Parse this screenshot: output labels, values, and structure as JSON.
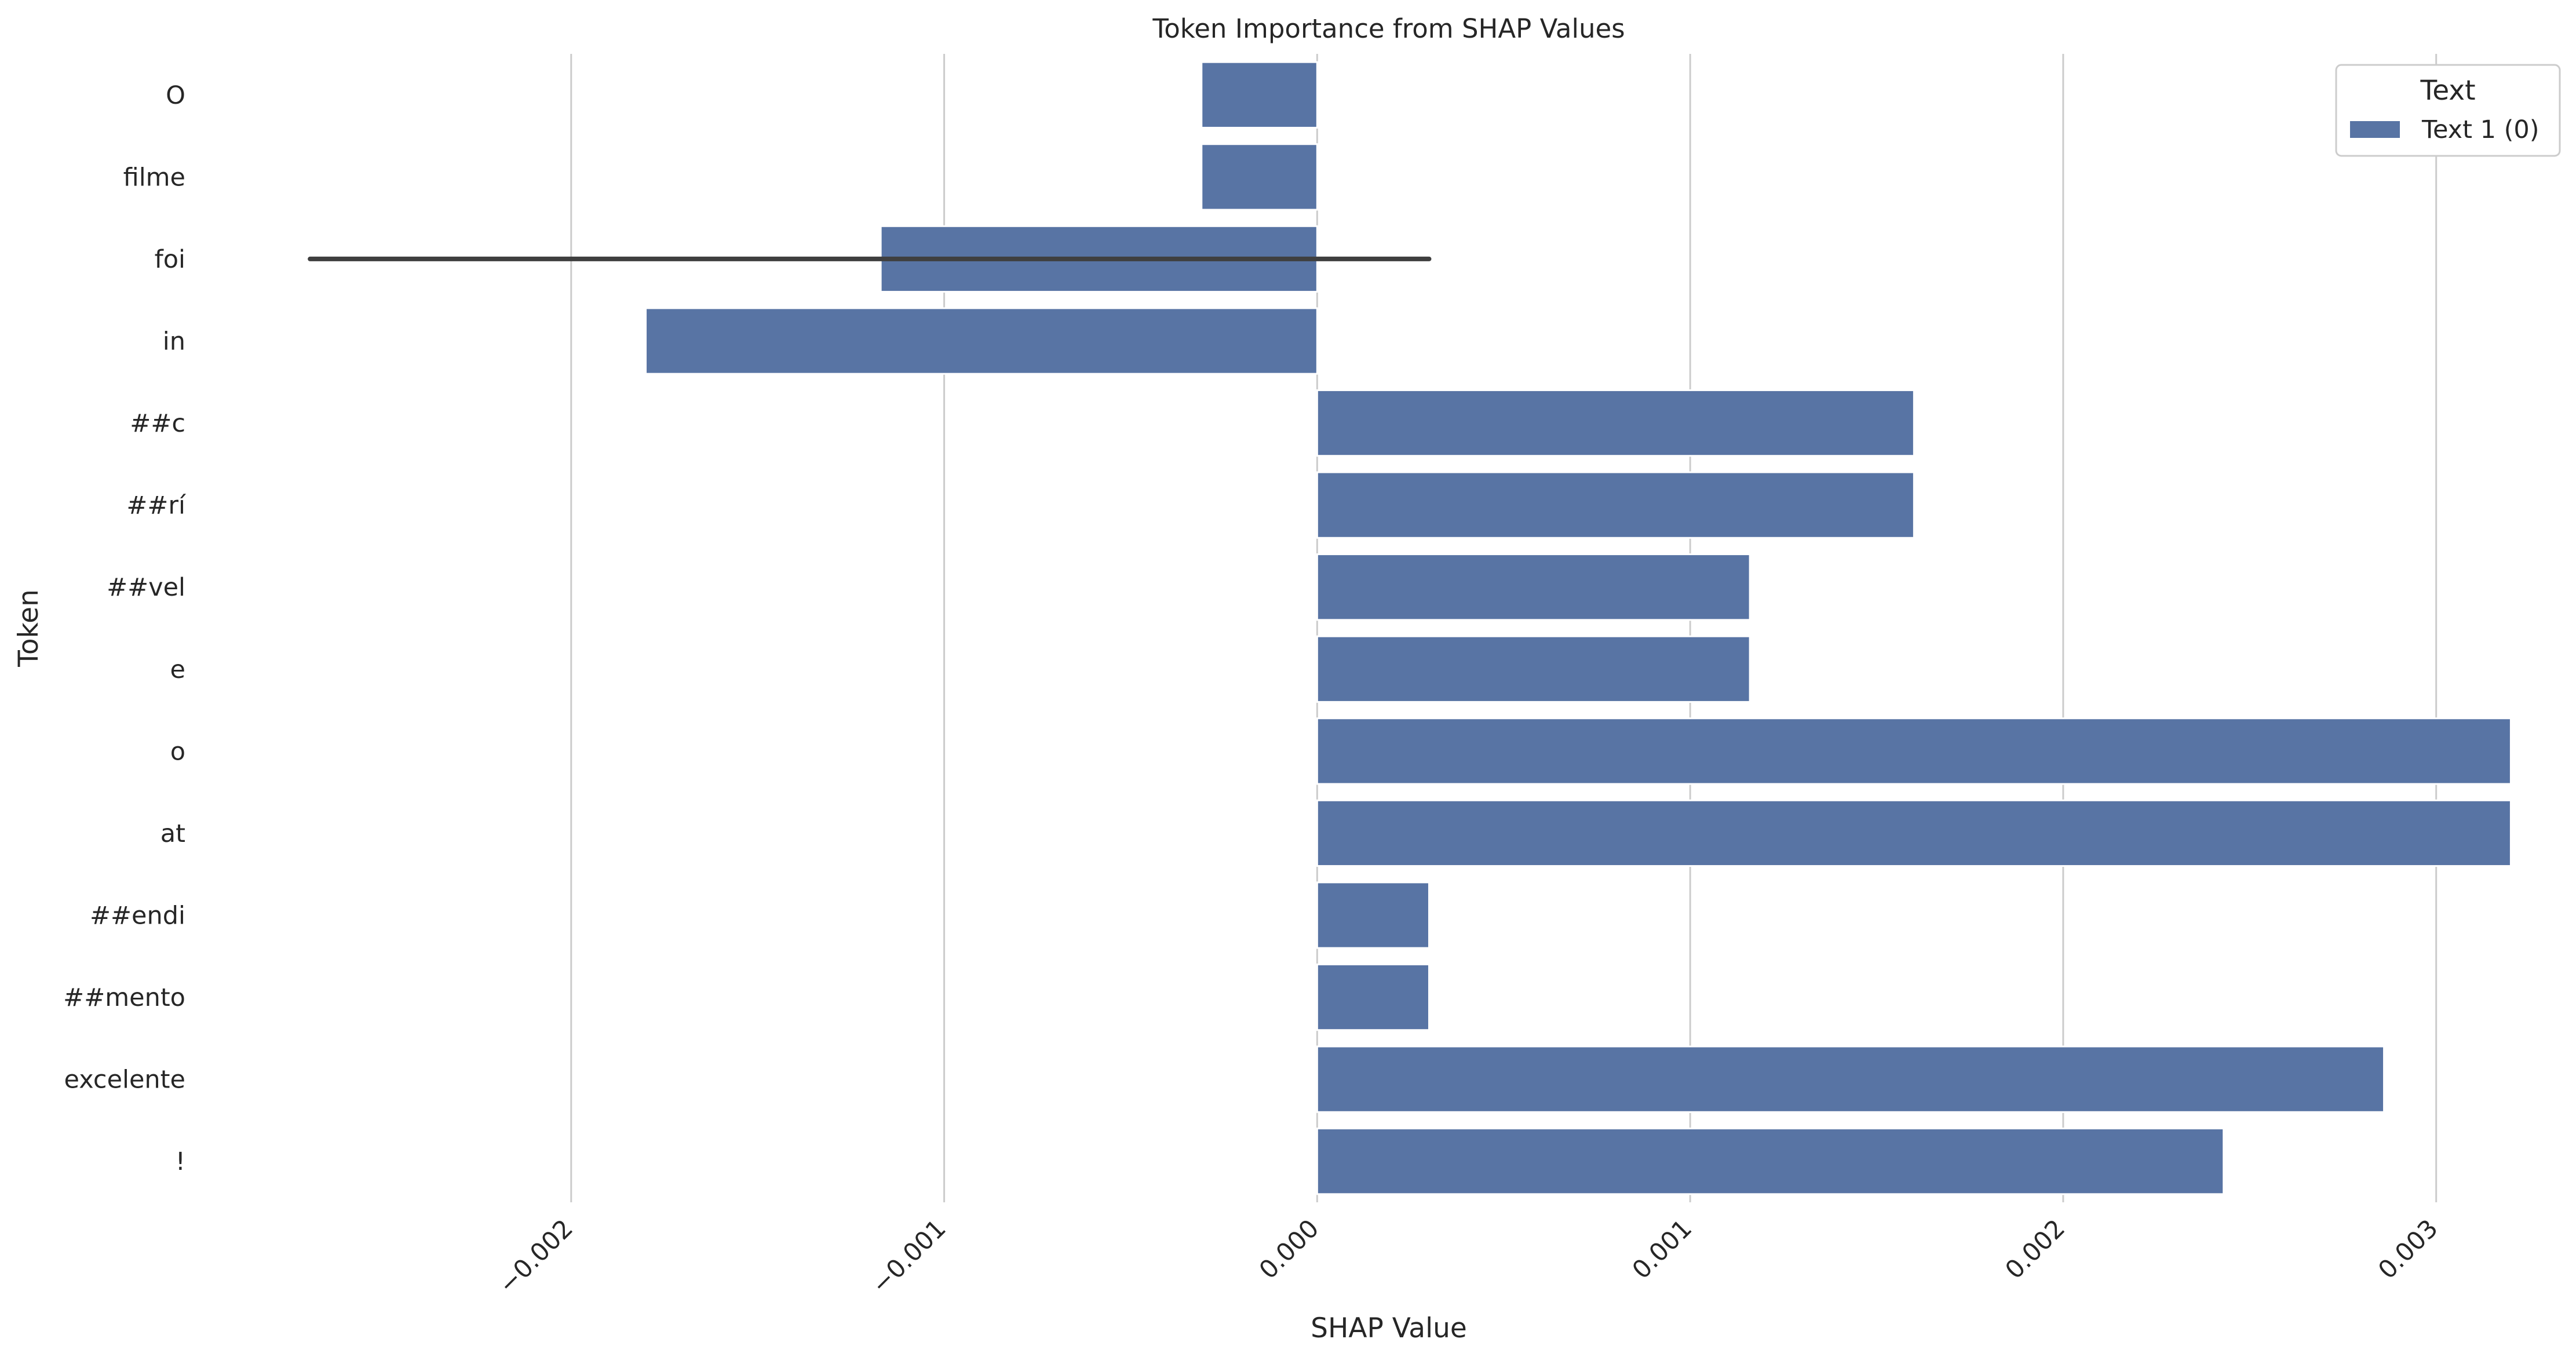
{
  "chart_data": {
    "type": "bar",
    "orientation": "horizontal",
    "title": "Token Importance from SHAP Values",
    "xlabel": "SHAP Value",
    "ylabel": "Token",
    "categories": [
      "O",
      "filme",
      "foi",
      "in",
      "##c",
      "##rí",
      "##vel",
      "e",
      "o",
      "at",
      "##endi",
      "##mento",
      "excelente",
      "!"
    ],
    "series": [
      {
        "name": "Text 1 (0)",
        "color": "#5874a4",
        "values": [
          -0.00031,
          -0.00031,
          -0.00117,
          -0.0018,
          0.0016,
          0.0016,
          0.00116,
          0.00116,
          0.0032,
          0.0032,
          0.0003,
          0.0003,
          0.00286,
          0.00243
        ],
        "error": [
          null,
          null,
          [
            -0.0027,
            0.0003
          ],
          null,
          null,
          null,
          null,
          null,
          null,
          null,
          null,
          null,
          null,
          null
        ]
      }
    ],
    "xlim": [
      -0.003,
      0.00335
    ],
    "xticks": [
      -0.002,
      -0.001,
      0.0,
      0.001,
      0.002,
      0.003
    ],
    "xtick_labels": [
      "−0.002",
      "−0.001",
      "0.000",
      "0.001",
      "0.002",
      "0.003"
    ],
    "grid": "vertical",
    "legend": {
      "title": "Text",
      "placement": "top-right"
    }
  }
}
